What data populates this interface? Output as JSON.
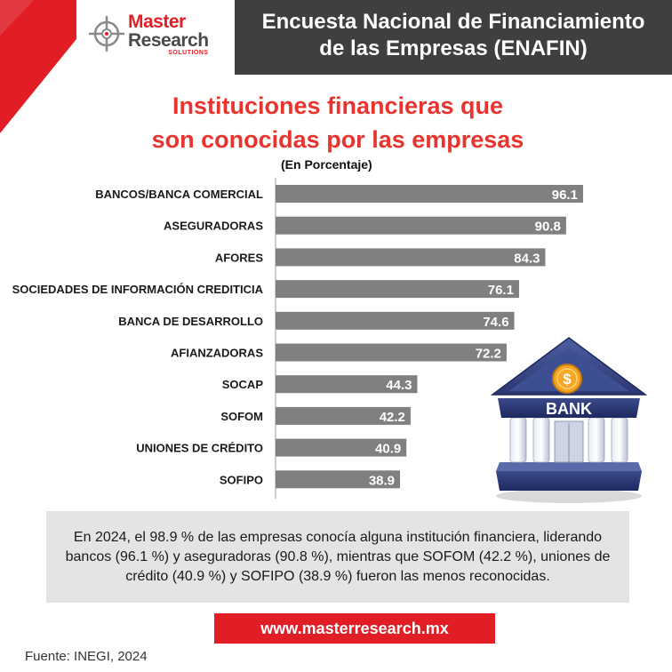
{
  "brand": {
    "name_line1": "Master",
    "name_line2": "Research",
    "tagline": "SOLUTIONS",
    "accent_color": "#e11e26"
  },
  "header": {
    "title_line1": "Encuesta Nacional de Financiamiento",
    "title_line2": "de las Empresas (ENAFIN)"
  },
  "chart_data": {
    "type": "bar",
    "orientation": "horizontal",
    "title_line1": "Instituciones financieras que",
    "title_line2": "son conocidas por las empresas",
    "subtitle": "(En Porcentaje)",
    "categories": [
      "BANCOS/BANCA COMERCIAL",
      "ASEGURADORAS",
      "AFORES",
      "SOCIEDADES DE INFORMACIÓN CREDITICIA",
      "BANCA DE DESARROLLO",
      "AFIANZADORAS",
      "SOCAP",
      "SOFOM",
      "UNIONES DE CRÉDITO",
      "SOFIPO"
    ],
    "values": [
      96.1,
      90.8,
      84.3,
      76.1,
      74.6,
      72.2,
      44.3,
      42.2,
      40.9,
      38.9
    ],
    "value_labels": [
      "96.1",
      "90.8",
      "84.3",
      "76.1",
      "74.6",
      "72.2",
      "44.3",
      "42.2",
      "40.9",
      "38.9"
    ],
    "xlim": [
      0,
      100
    ],
    "bar_color": "#808080",
    "label_color": "#ffffff",
    "grid": false,
    "legend": "none"
  },
  "illustration": {
    "sign_text": "BANK",
    "coin_symbol": "$"
  },
  "note": {
    "text": "En 2024, el 98.9 % de las empresas conocía alguna institución financiera, liderando bancos (96.1 %) y aseguradoras (90.8 %), mientras que SOFOM (42.2 %), uniones de crédito (40.9 %) y SOFIPO (38.9 %) fueron las menos reconocidas."
  },
  "website": "www.masterresearch.mx",
  "source": "Fuente: INEGI, 2024"
}
